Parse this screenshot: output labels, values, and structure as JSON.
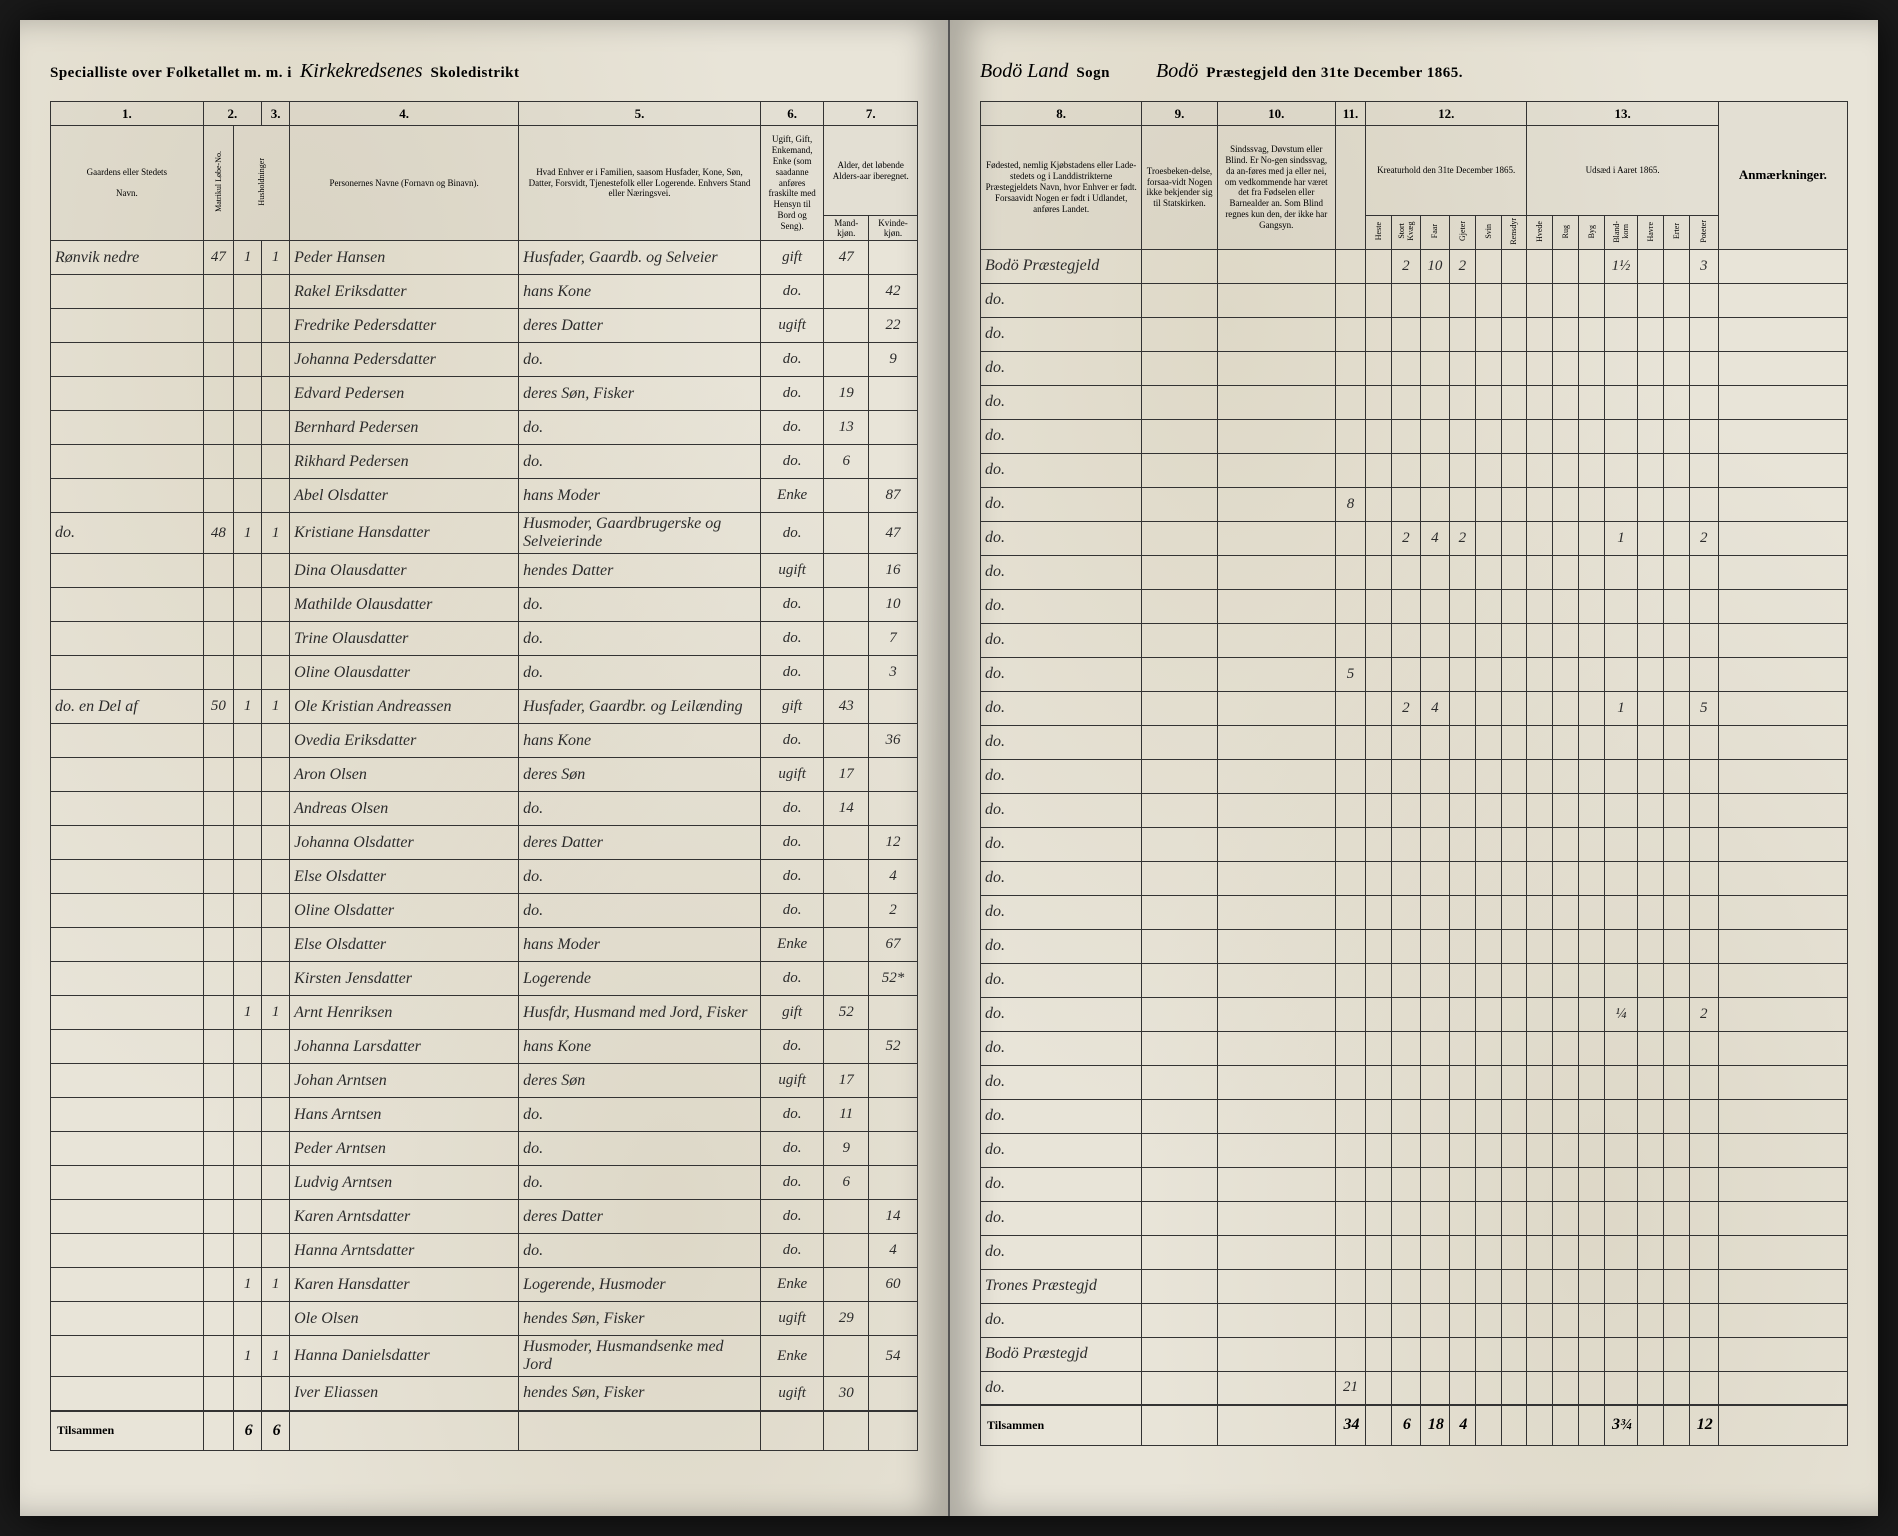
{
  "header_left": {
    "lead": "Specialliste over Folketallet m. m. i",
    "district": "Kirkekredsenes",
    "trail": "Skoledistrikt"
  },
  "header_right": {
    "sogn_value": "Bodö Land",
    "sogn_label": "Sogn",
    "praest_value": "Bodö",
    "praest_label": "Præstegjeld den 31te December 1865."
  },
  "left_colnums": [
    "1.",
    "2.",
    "3.",
    "4.",
    "5.",
    "6.",
    "7."
  ],
  "left_heads": {
    "c1a": "Gaardens eller Stedets",
    "c1b": "Navn.",
    "c2": "Matrikul Løbe-No.",
    "c3": "Husholdninger",
    "c4": "Personernes Navne (Fornavn og Binavn).",
    "c5": "Hvad Enhver er i Familien, saasom Husfader, Kone, Søn, Datter, Forsvidt, Tjenestefolk eller Logerende. Enhvers Stand eller Næringsvei.",
    "c6": "Ugift, Gift, Enkemand, Enke (som saadanne anføres fraskilte med Hensyn til Bord og Seng).",
    "c7": "Alder, det løbende Alders-aar iberegnet.",
    "c7a": "Mand-kjøn.",
    "c7b": "Kvinde-kjøn."
  },
  "right_colnums": [
    "8.",
    "9.",
    "10.",
    "11.",
    "12.",
    "13."
  ],
  "right_heads": {
    "c8": "Fødested, nemlig Kjøbstadens eller Lade-stedets og i Landdistrikterne Præstegjeldets Navn, hvor Enhver er født. Forsaavidt Nogen er født i Udlandet, anføres Landet.",
    "c9": "Troesbeken-delse, forsaa-vidt Nogen ikke bekjender sig til Statskirken.",
    "c10": "Sindssvag, Døvstum eller Blind. Er No-gen sindssvag, da an-føres med ja eller nei, om vedkommende har været det fra Fødselen eller Barnealder an. Som Blind regnes kun den, der ikke har Gangsyn.",
    "c11": "",
    "c12": "Kreaturhold den 31te December 1865.",
    "c13": "Udsæd i Aaret 1865.",
    "anm": "Anmærkninger."
  },
  "sub12": [
    "Heste",
    "Stort Kvæg",
    "Faar",
    "Gjeter",
    "Svin",
    "Rensdyr"
  ],
  "sub13": [
    "Hvede",
    "Rug",
    "Byg",
    "Bland-korn",
    "Havre",
    "Erter",
    "Poteter"
  ],
  "rows": [
    {
      "gaard": "Rønvik nedre",
      "mn": "47",
      "hh": "1",
      "hh2": "1",
      "navn": "Peder Hansen",
      "fam": "Husfader, Gaardb. og Selveier",
      "stat": "gift",
      "m": "47",
      "k": "",
      "fod": "Bodö Præstegjeld",
      "c11": "",
      "k12": [
        "",
        "2",
        "10",
        "2",
        "",
        ""
      ],
      "k13": [
        "",
        "",
        "",
        "1½",
        "",
        "",
        "3"
      ]
    },
    {
      "gaard": "",
      "mn": "",
      "hh": "",
      "hh2": "",
      "navn": "Rakel Eriksdatter",
      "fam": "hans Kone",
      "stat": "do.",
      "m": "",
      "k": "42",
      "fod": "do.",
      "c11": "",
      "k12": [
        "",
        "",
        "",
        "",
        "",
        ""
      ],
      "k13": [
        "",
        "",
        "",
        "",
        "",
        "",
        ""
      ]
    },
    {
      "gaard": "",
      "mn": "",
      "hh": "",
      "hh2": "",
      "navn": "Fredrike Pedersdatter",
      "fam": "deres Datter",
      "stat": "ugift",
      "m": "",
      "k": "22",
      "fod": "do.",
      "c11": "",
      "k12": [
        "",
        "",
        "",
        "",
        "",
        ""
      ],
      "k13": [
        "",
        "",
        "",
        "",
        "",
        "",
        ""
      ]
    },
    {
      "gaard": "",
      "mn": "",
      "hh": "",
      "hh2": "",
      "navn": "Johanna Pedersdatter",
      "fam": "do.",
      "stat": "do.",
      "m": "",
      "k": "9",
      "fod": "do.",
      "c11": "",
      "k12": [
        "",
        "",
        "",
        "",
        "",
        ""
      ],
      "k13": [
        "",
        "",
        "",
        "",
        "",
        "",
        ""
      ]
    },
    {
      "gaard": "",
      "mn": "",
      "hh": "",
      "hh2": "",
      "navn": "Edvard Pedersen",
      "fam": "deres Søn, Fisker",
      "stat": "do.",
      "m": "19",
      "k": "",
      "fod": "do.",
      "c11": "",
      "k12": [
        "",
        "",
        "",
        "",
        "",
        ""
      ],
      "k13": [
        "",
        "",
        "",
        "",
        "",
        "",
        ""
      ]
    },
    {
      "gaard": "",
      "mn": "",
      "hh": "",
      "hh2": "",
      "navn": "Bernhard Pedersen",
      "fam": "do.",
      "stat": "do.",
      "m": "13",
      "k": "",
      "fod": "do.",
      "c11": "",
      "k12": [
        "",
        "",
        "",
        "",
        "",
        ""
      ],
      "k13": [
        "",
        "",
        "",
        "",
        "",
        "",
        ""
      ]
    },
    {
      "gaard": "",
      "mn": "",
      "hh": "",
      "hh2": "",
      "navn": "Rikhard Pedersen",
      "fam": "do.",
      "stat": "do.",
      "m": "6",
      "k": "",
      "fod": "do.",
      "c11": "",
      "k12": [
        "",
        "",
        "",
        "",
        "",
        ""
      ],
      "k13": [
        "",
        "",
        "",
        "",
        "",
        "",
        ""
      ]
    },
    {
      "gaard": "",
      "mn": "",
      "hh": "",
      "hh2": "",
      "navn": "Abel Olsdatter",
      "fam": "hans Moder",
      "stat": "Enke",
      "m": "",
      "k": "87",
      "fod": "do.",
      "c11": "8",
      "k12": [
        "",
        "",
        "",
        "",
        "",
        ""
      ],
      "k13": [
        "",
        "",
        "",
        "",
        "",
        "",
        ""
      ]
    },
    {
      "gaard": "do.",
      "mn": "48",
      "hh": "1",
      "hh2": "1",
      "navn": "Kristiane Hansdatter",
      "fam": "Husmoder, Gaardbrugerske og Selveierinde",
      "stat": "do.",
      "m": "",
      "k": "47",
      "fod": "do.",
      "c11": "",
      "k12": [
        "",
        "2",
        "4",
        "2",
        "",
        ""
      ],
      "k13": [
        "",
        "",
        "",
        "1",
        "",
        "",
        "2"
      ]
    },
    {
      "gaard": "",
      "mn": "",
      "hh": "",
      "hh2": "",
      "navn": "Dina Olausdatter",
      "fam": "hendes Datter",
      "stat": "ugift",
      "m": "",
      "k": "16",
      "fod": "do.",
      "c11": "",
      "k12": [
        "",
        "",
        "",
        "",
        "",
        ""
      ],
      "k13": [
        "",
        "",
        "",
        "",
        "",
        "",
        ""
      ]
    },
    {
      "gaard": "",
      "mn": "",
      "hh": "",
      "hh2": "",
      "navn": "Mathilde Olausdatter",
      "fam": "do.",
      "stat": "do.",
      "m": "",
      "k": "10",
      "fod": "do.",
      "c11": "",
      "k12": [
        "",
        "",
        "",
        "",
        "",
        ""
      ],
      "k13": [
        "",
        "",
        "",
        "",
        "",
        "",
        ""
      ]
    },
    {
      "gaard": "",
      "mn": "",
      "hh": "",
      "hh2": "",
      "navn": "Trine Olausdatter",
      "fam": "do.",
      "stat": "do.",
      "m": "",
      "k": "7",
      "fod": "do.",
      "c11": "",
      "k12": [
        "",
        "",
        "",
        "",
        "",
        ""
      ],
      "k13": [
        "",
        "",
        "",
        "",
        "",
        "",
        ""
      ]
    },
    {
      "gaard": "",
      "mn": "",
      "hh": "",
      "hh2": "",
      "navn": "Oline Olausdatter",
      "fam": "do.",
      "stat": "do.",
      "m": "",
      "k": "3",
      "fod": "do.",
      "c11": "5",
      "k12": [
        "",
        "",
        "",
        "",
        "",
        ""
      ],
      "k13": [
        "",
        "",
        "",
        "",
        "",
        "",
        ""
      ]
    },
    {
      "gaard": "do. en Del af",
      "mn": "50",
      "hh": "1",
      "hh2": "1",
      "navn": "Ole Kristian Andreassen",
      "fam": "Husfader, Gaardbr. og Leilænding",
      "stat": "gift",
      "m": "43",
      "k": "",
      "fod": "do.",
      "c11": "",
      "k12": [
        "",
        "2",
        "4",
        "",
        "",
        ""
      ],
      "k13": [
        "",
        "",
        "",
        "1",
        "",
        "",
        "5"
      ]
    },
    {
      "gaard": "",
      "mn": "",
      "hh": "",
      "hh2": "",
      "navn": "Ovedia Eriksdatter",
      "fam": "hans Kone",
      "stat": "do.",
      "m": "",
      "k": "36",
      "fod": "do.",
      "c11": "",
      "k12": [
        "",
        "",
        "",
        "",
        "",
        ""
      ],
      "k13": [
        "",
        "",
        "",
        "",
        "",
        "",
        ""
      ]
    },
    {
      "gaard": "",
      "mn": "",
      "hh": "",
      "hh2": "",
      "navn": "Aron Olsen",
      "fam": "deres Søn",
      "stat": "ugift",
      "m": "17",
      "k": "",
      "fod": "do.",
      "c11": "",
      "k12": [
        "",
        "",
        "",
        "",
        "",
        ""
      ],
      "k13": [
        "",
        "",
        "",
        "",
        "",
        "",
        ""
      ]
    },
    {
      "gaard": "",
      "mn": "",
      "hh": "",
      "hh2": "",
      "navn": "Andreas Olsen",
      "fam": "do.",
      "stat": "do.",
      "m": "14",
      "k": "",
      "fod": "do.",
      "c11": "",
      "k12": [
        "",
        "",
        "",
        "",
        "",
        ""
      ],
      "k13": [
        "",
        "",
        "",
        "",
        "",
        "",
        ""
      ]
    },
    {
      "gaard": "",
      "mn": "",
      "hh": "",
      "hh2": "",
      "navn": "Johanna Olsdatter",
      "fam": "deres Datter",
      "stat": "do.",
      "m": "",
      "k": "12",
      "fod": "do.",
      "c11": "",
      "k12": [
        "",
        "",
        "",
        "",
        "",
        ""
      ],
      "k13": [
        "",
        "",
        "",
        "",
        "",
        "",
        ""
      ]
    },
    {
      "gaard": "",
      "mn": "",
      "hh": "",
      "hh2": "",
      "navn": "Else Olsdatter",
      "fam": "do.",
      "stat": "do.",
      "m": "",
      "k": "4",
      "fod": "do.",
      "c11": "",
      "k12": [
        "",
        "",
        "",
        "",
        "",
        ""
      ],
      "k13": [
        "",
        "",
        "",
        "",
        "",
        "",
        ""
      ]
    },
    {
      "gaard": "",
      "mn": "",
      "hh": "",
      "hh2": "",
      "navn": "Oline Olsdatter",
      "fam": "do.",
      "stat": "do.",
      "m": "",
      "k": "2",
      "fod": "do.",
      "c11": "",
      "k12": [
        "",
        "",
        "",
        "",
        "",
        ""
      ],
      "k13": [
        "",
        "",
        "",
        "",
        "",
        "",
        ""
      ]
    },
    {
      "gaard": "",
      "mn": "",
      "hh": "",
      "hh2": "",
      "navn": "Else Olsdatter",
      "fam": "hans Moder",
      "stat": "Enke",
      "m": "",
      "k": "67",
      "fod": "do.",
      "c11": "",
      "k12": [
        "",
        "",
        "",
        "",
        "",
        ""
      ],
      "k13": [
        "",
        "",
        "",
        "",
        "",
        "",
        ""
      ]
    },
    {
      "gaard": "",
      "mn": "",
      "hh": "",
      "hh2": "",
      "navn": "Kirsten Jensdatter",
      "fam": "Logerende",
      "stat": "do.",
      "m": "",
      "k": "52*",
      "fod": "do.",
      "c11": "",
      "k12": [
        "",
        "",
        "",
        "",
        "",
        ""
      ],
      "k13": [
        "",
        "",
        "",
        "",
        "",
        "",
        ""
      ]
    },
    {
      "gaard": "",
      "mn": "",
      "hh": "1",
      "hh2": "1",
      "navn": "Arnt Henriksen",
      "fam": "Husfdr, Husmand med Jord, Fisker",
      "stat": "gift",
      "m": "52",
      "k": "",
      "fod": "do.",
      "c11": "",
      "k12": [
        "",
        "",
        "",
        "",
        "",
        ""
      ],
      "k13": [
        "",
        "",
        "",
        "¼",
        "",
        "",
        "2"
      ]
    },
    {
      "gaard": "",
      "mn": "",
      "hh": "",
      "hh2": "",
      "navn": "Johanna Larsdatter",
      "fam": "hans Kone",
      "stat": "do.",
      "m": "",
      "k": "52",
      "fod": "do.",
      "c11": "",
      "k12": [
        "",
        "",
        "",
        "",
        "",
        ""
      ],
      "k13": [
        "",
        "",
        "",
        "",
        "",
        "",
        ""
      ]
    },
    {
      "gaard": "",
      "mn": "",
      "hh": "",
      "hh2": "",
      "navn": "Johan Arntsen",
      "fam": "deres Søn",
      "stat": "ugift",
      "m": "17",
      "k": "",
      "fod": "do.",
      "c11": "",
      "k12": [
        "",
        "",
        "",
        "",
        "",
        ""
      ],
      "k13": [
        "",
        "",
        "",
        "",
        "",
        "",
        ""
      ]
    },
    {
      "gaard": "",
      "mn": "",
      "hh": "",
      "hh2": "",
      "navn": "Hans Arntsen",
      "fam": "do.",
      "stat": "do.",
      "m": "11",
      "k": "",
      "fod": "do.",
      "c11": "",
      "k12": [
        "",
        "",
        "",
        "",
        "",
        ""
      ],
      "k13": [
        "",
        "",
        "",
        "",
        "",
        "",
        ""
      ]
    },
    {
      "gaard": "",
      "mn": "",
      "hh": "",
      "hh2": "",
      "navn": "Peder Arntsen",
      "fam": "do.",
      "stat": "do.",
      "m": "9",
      "k": "",
      "fod": "do.",
      "c11": "",
      "k12": [
        "",
        "",
        "",
        "",
        "",
        ""
      ],
      "k13": [
        "",
        "",
        "",
        "",
        "",
        "",
        ""
      ]
    },
    {
      "gaard": "",
      "mn": "",
      "hh": "",
      "hh2": "",
      "navn": "Ludvig Arntsen",
      "fam": "do.",
      "stat": "do.",
      "m": "6",
      "k": "",
      "fod": "do.",
      "c11": "",
      "k12": [
        "",
        "",
        "",
        "",
        "",
        ""
      ],
      "k13": [
        "",
        "",
        "",
        "",
        "",
        "",
        ""
      ]
    },
    {
      "gaard": "",
      "mn": "",
      "hh": "",
      "hh2": "",
      "navn": "Karen Arntsdatter",
      "fam": "deres Datter",
      "stat": "do.",
      "m": "",
      "k": "14",
      "fod": "do.",
      "c11": "",
      "k12": [
        "",
        "",
        "",
        "",
        "",
        ""
      ],
      "k13": [
        "",
        "",
        "",
        "",
        "",
        "",
        ""
      ]
    },
    {
      "gaard": "",
      "mn": "",
      "hh": "",
      "hh2": "",
      "navn": "Hanna Arntsdatter",
      "fam": "do.",
      "stat": "do.",
      "m": "",
      "k": "4",
      "fod": "do.",
      "c11": "",
      "k12": [
        "",
        "",
        "",
        "",
        "",
        ""
      ],
      "k13": [
        "",
        "",
        "",
        "",
        "",
        "",
        ""
      ]
    },
    {
      "gaard": "",
      "mn": "",
      "hh": "1",
      "hh2": "1",
      "navn": "Karen Hansdatter",
      "fam": "Logerende, Husmoder",
      "stat": "Enke",
      "m": "",
      "k": "60",
      "fod": "Trones Præstegjd",
      "c11": "",
      "k12": [
        "",
        "",
        "",
        "",
        "",
        ""
      ],
      "k13": [
        "",
        "",
        "",
        "",
        "",
        "",
        ""
      ]
    },
    {
      "gaard": "",
      "mn": "",
      "hh": "",
      "hh2": "",
      "navn": "Ole Olsen",
      "fam": "hendes Søn, Fisker",
      "stat": "ugift",
      "m": "29",
      "k": "",
      "fod": "do.",
      "c11": "",
      "k12": [
        "",
        "",
        "",
        "",
        "",
        ""
      ],
      "k13": [
        "",
        "",
        "",
        "",
        "",
        "",
        ""
      ]
    },
    {
      "gaard": "",
      "mn": "",
      "hh": "1",
      "hh2": "1",
      "navn": "Hanna Danielsdatter",
      "fam": "Husmoder, Husmandsenke med Jord",
      "stat": "Enke",
      "m": "",
      "k": "54",
      "fod": "Bodö Præstegjd",
      "c11": "",
      "k12": [
        "",
        "",
        "",
        "",
        "",
        ""
      ],
      "k13": [
        "",
        "",
        "",
        "",
        "",
        "",
        ""
      ]
    },
    {
      "gaard": "",
      "mn": "",
      "hh": "",
      "hh2": "",
      "navn": "Iver Eliassen",
      "fam": "hendes Søn, Fisker",
      "stat": "ugift",
      "m": "30",
      "k": "",
      "fod": "do.",
      "c11": "21",
      "k12": [
        "",
        "",
        "",
        "",
        "",
        ""
      ],
      "k13": [
        "",
        "",
        "",
        "",
        "",
        "",
        ""
      ]
    }
  ],
  "footer": {
    "left_label": "Tilsammen",
    "left_sum_hh": "6",
    "left_sum_hh2": "6",
    "right_label": "Tilsammen",
    "c11": "34",
    "k12": [
      "",
      "6",
      "18",
      "4",
      "",
      ""
    ],
    "k13": [
      "",
      "",
      "",
      "3¾",
      "",
      "",
      "12"
    ]
  }
}
